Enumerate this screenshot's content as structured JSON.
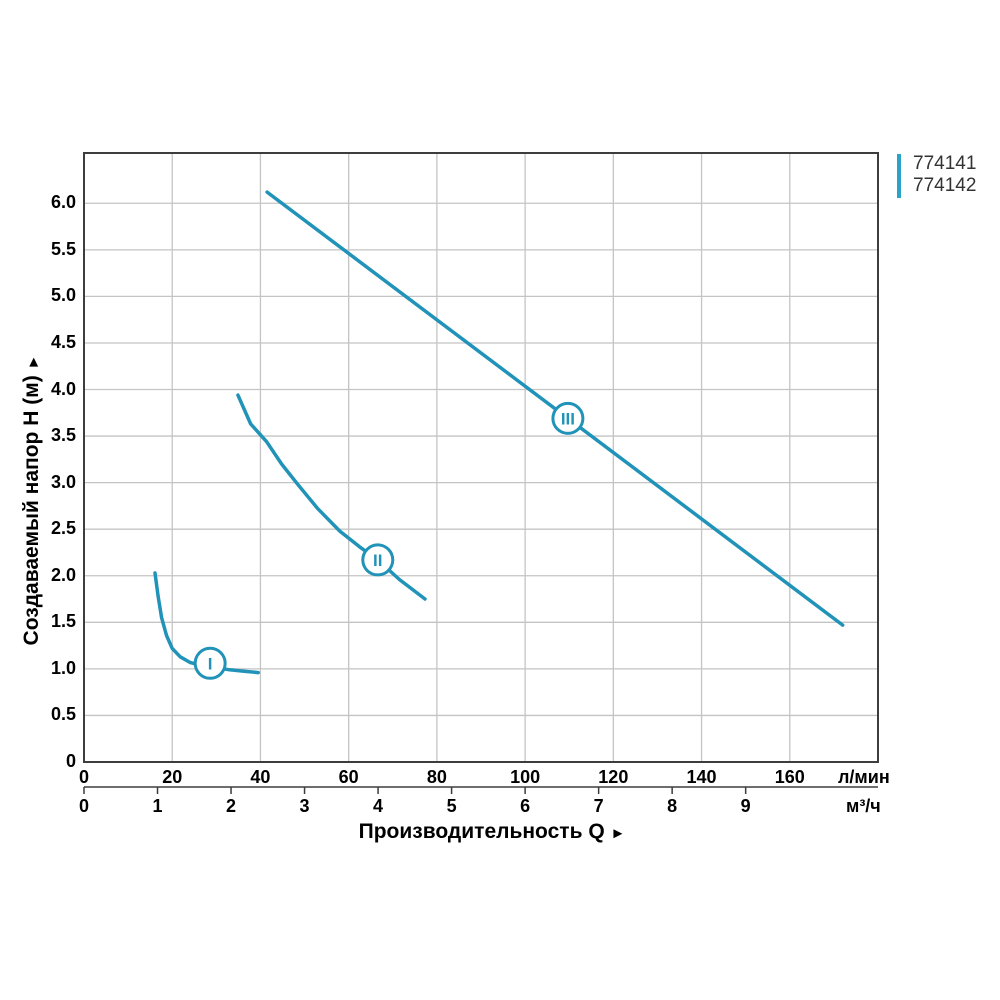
{
  "page": {
    "background": "#ffffff"
  },
  "colors": {
    "curve": "#2193b8",
    "legend_bar": "#2ba3c9",
    "grid": "#c4c4c4",
    "plot_border": "#3d3d3d",
    "axis_text": "#000000",
    "legend_text": "#333333",
    "marker_fill": "#ffffff"
  },
  "chart_data": {
    "type": "line",
    "title": "",
    "xlabel": "Производительность Q",
    "x_arrow": "►",
    "ylabel": "Создаваемый напор H (м)",
    "y_arrow": "►",
    "x_unit_primary": "л/мин",
    "x_unit_secondary": "м³/ч",
    "xlim_lpm": [
      0,
      180
    ],
    "ylim": [
      0,
      6.54
    ],
    "grid": true,
    "legend_position": "top-right-outside",
    "legend": [
      "774141",
      "774142"
    ],
    "x_ticks_lpm": {
      "values": [
        0,
        20,
        40,
        60,
        80,
        100,
        120,
        140,
        160
      ],
      "labels": [
        "0",
        "20",
        "40",
        "60",
        "80",
        "100",
        "120",
        "140",
        "160"
      ]
    },
    "x_ticks_m3h": {
      "values": [
        0,
        1,
        2,
        3,
        4,
        5,
        6,
        7,
        8,
        9
      ],
      "labels": [
        "0",
        "1",
        "2",
        "3",
        "4",
        "5",
        "6",
        "7",
        "8",
        "9"
      ]
    },
    "y_ticks": {
      "values": [
        0,
        0.5,
        1.0,
        1.5,
        2.0,
        2.5,
        3.0,
        3.5,
        4.0,
        4.5,
        5.0,
        5.5,
        6.0
      ],
      "labels": [
        "0",
        "0.5",
        "1.0",
        "1.5",
        "2.0",
        "2.5",
        "3.0",
        "3.5",
        "4.0",
        "4.5",
        "5.0",
        "5.5",
        "6.0"
      ]
    },
    "grid_x_lpm": [
      20,
      40,
      60,
      80,
      100,
      120,
      140,
      160
    ],
    "grid_y": [
      0.5,
      1.0,
      1.5,
      2.0,
      2.5,
      3.0,
      3.5,
      4.0,
      4.5,
      5.0,
      5.5,
      6.0
    ],
    "series": [
      {
        "name": "I",
        "points_lpm_m": [
          [
            16.1,
            2.03
          ],
          [
            16.8,
            1.78
          ],
          [
            17.6,
            1.55
          ],
          [
            18.7,
            1.36
          ],
          [
            20.0,
            1.22
          ],
          [
            21.8,
            1.13
          ],
          [
            24.0,
            1.07
          ],
          [
            26.5,
            1.04
          ],
          [
            29.0,
            1.02
          ],
          [
            33.0,
            0.99
          ],
          [
            36.3,
            0.975
          ],
          [
            39.5,
            0.96
          ]
        ],
        "marker": {
          "x_lpm": 28.6,
          "y_m": 1.06,
          "label": "I"
        }
      },
      {
        "name": "II",
        "points_lpm_m": [
          [
            34.9,
            3.94
          ],
          [
            37.8,
            3.63
          ],
          [
            41.4,
            3.44
          ],
          [
            44.8,
            3.2
          ],
          [
            48.3,
            2.99
          ],
          [
            53.0,
            2.72
          ],
          [
            58.0,
            2.48
          ],
          [
            62.5,
            2.31
          ],
          [
            66.6,
            2.17
          ],
          [
            71.5,
            1.96
          ],
          [
            77.3,
            1.75
          ]
        ],
        "marker": {
          "x_lpm": 66.6,
          "y_m": 2.17,
          "label": "II"
        }
      },
      {
        "name": "III",
        "points_lpm_m": [
          [
            41.5,
            6.12
          ],
          [
            172.0,
            1.47
          ]
        ],
        "marker": {
          "x_lpm": 109.7,
          "y_m": 3.69,
          "label": "III"
        }
      }
    ]
  }
}
